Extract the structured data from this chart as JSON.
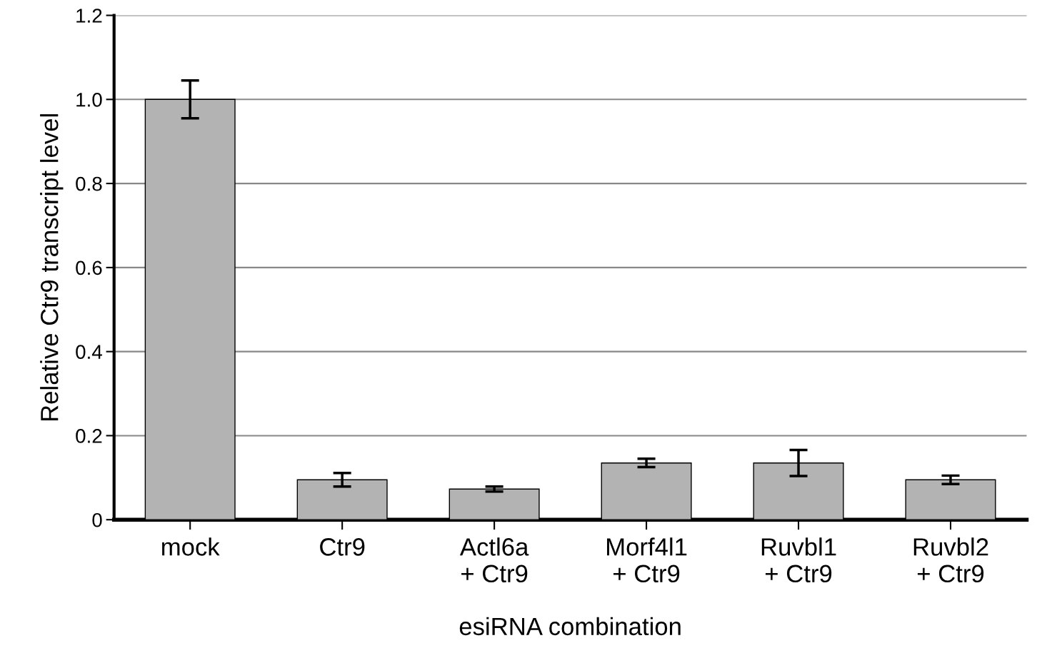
{
  "chart_data": {
    "type": "bar",
    "xlabel": "esiRNA combination",
    "ylabel": "Relative Ctr9 transcript level",
    "categories": [
      "mock",
      "Ctr9",
      "Actl6a\n+ Ctr9",
      "Morf4l1\n+ Ctr9",
      "Ruvbl1\n+ Ctr9",
      "Ruvbl2\n+ Ctr9"
    ],
    "values": [
      1.0,
      0.095,
      0.073,
      0.135,
      0.135,
      0.095
    ],
    "errors": [
      0.045,
      0.016,
      0.006,
      0.01,
      0.031,
      0.01
    ],
    "color": "#b3b3b3",
    "ylim": [
      0,
      1.2
    ],
    "yticks": [
      0,
      {
        "value": 0.2,
        "label": "0.2"
      },
      {
        "value": 0.4,
        "label": "0.4"
      },
      {
        "value": 0.6,
        "label": "0.6"
      },
      {
        "value": 0.8,
        "label": "0.8"
      },
      {
        "value": 1.0,
        "label": "1.0"
      },
      {
        "value": 1.2,
        "label": "1.2"
      }
    ],
    "grid": "y"
  }
}
